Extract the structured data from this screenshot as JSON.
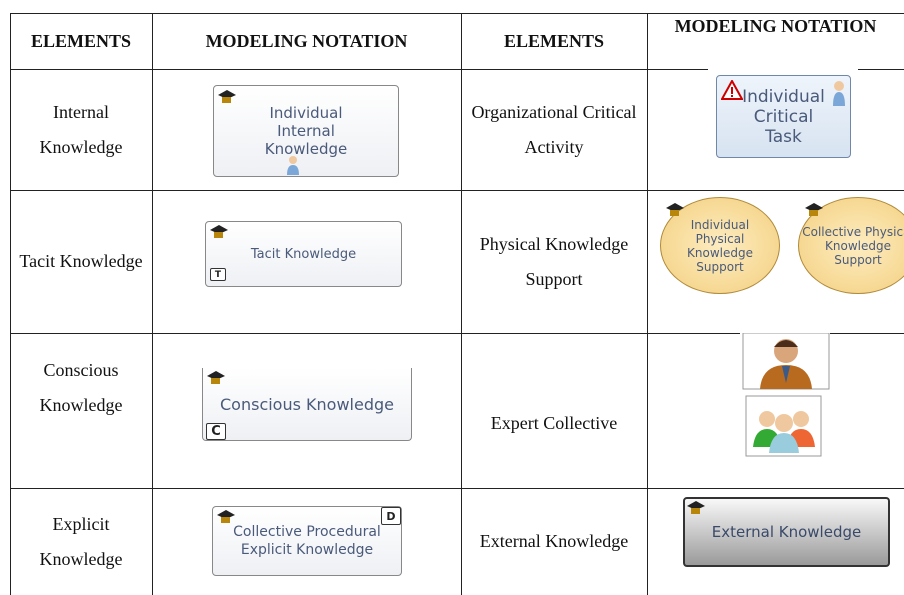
{
  "table": {
    "header": [
      "ELEMENTS",
      "MODELING NOTATION",
      "ELEMENTS",
      "MODELING NOTATION"
    ],
    "rows": [
      {
        "element": "Internal Knowledge",
        "notation": "Individual Internal Knowledge",
        "element2": "Organizational Critical Activity",
        "notation2": "Individual Critical Task"
      },
      {
        "element": "Tacit Knowledge",
        "notation": "Tacit Knowledge",
        "badge": "T",
        "element2": "Physical Knowledge Support",
        "notation2": "Individual Physical Knowledge Support",
        "notation3": "Collective Physical Knowledge Support"
      },
      {
        "element": "Conscious Knowledge",
        "notation": "Conscious Knowledge",
        "badge": "C",
        "element2": "Expert Collective"
      },
      {
        "element": "Explicit Knowledge",
        "notation": "Collective Procedural Explicit Knowledge",
        "badge": "D",
        "element2": "External Knowledge",
        "notation2": "External Knowledge"
      }
    ]
  }
}
